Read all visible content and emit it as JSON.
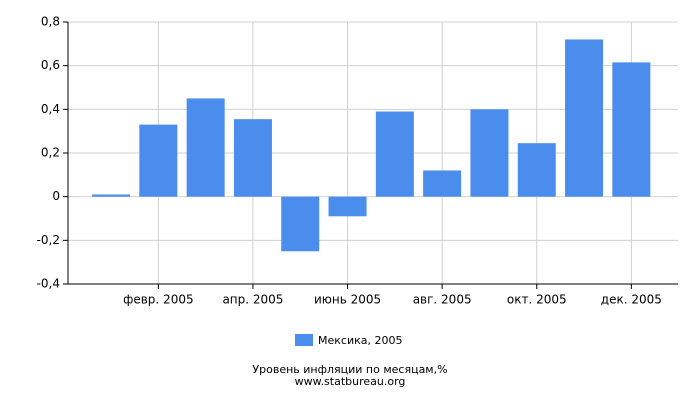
{
  "chart_data": {
    "type": "bar",
    "categories": [
      null,
      "февр. 2005",
      null,
      "апр. 2005",
      null,
      "июнь 2005",
      null,
      "авг. 2005",
      null,
      "окт. 2005",
      null,
      "дек. 2005"
    ],
    "series": [
      {
        "name": "Мексика, 2005",
        "color": "#4a8ded",
        "values": [
          0.01,
          0.33,
          0.45,
          0.355,
          -0.25,
          -0.09,
          0.39,
          0.12,
          0.4,
          0.245,
          0.72,
          0.615
        ]
      }
    ],
    "ylim": [
      -0.4,
      0.8
    ],
    "yticks": [
      {
        "value": -0.4,
        "label": "-0,4"
      },
      {
        "value": -0.2,
        "label": "-0,2"
      },
      0,
      {
        "value": 0.2,
        "label": "0,2"
      },
      {
        "value": 0.4,
        "label": "0,4"
      },
      {
        "value": 0.6,
        "label": "0,6"
      },
      {
        "value": 0.8,
        "label": "0,8"
      }
    ],
    "grid": true,
    "legend": "bottom",
    "caption": "Уровень инфляции по месяцам,%",
    "source": "www.statbureau.org"
  }
}
